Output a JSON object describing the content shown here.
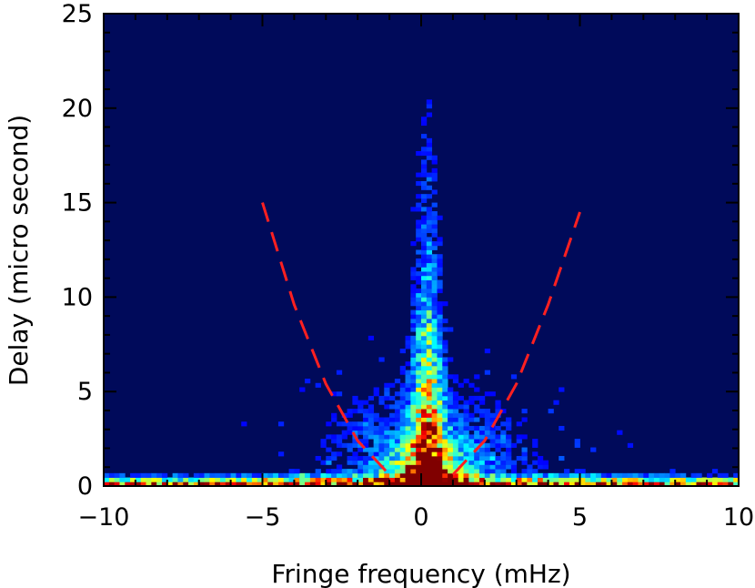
{
  "chart_data": {
    "type": "heatmap",
    "xlabel": "Fringe frequency (mHz)",
    "ylabel": "Delay (micro second)",
    "xlim": [
      -10,
      10
    ],
    "ylim": [
      0,
      25
    ],
    "x_ticks": [
      -10,
      -5,
      0,
      5,
      10
    ],
    "y_ticks": [
      0,
      5,
      10,
      15,
      20,
      25
    ],
    "x_tick_labels": [
      "−10",
      "−5",
      "0",
      "5",
      "10"
    ],
    "y_tick_labels": [
      "0",
      "5",
      "10",
      "15",
      "20",
      "25"
    ],
    "grid": false,
    "colormap": "jet",
    "background_color": "#000a5a",
    "overlay_curves": [
      {
        "style": "dashed",
        "color": "#ff2020",
        "x": [
          -5.0,
          -4.0,
          -3.0,
          -2.0,
          -1.0
        ],
        "y": [
          15.0,
          9.6,
          5.4,
          2.4,
          0.6
        ]
      },
      {
        "style": "dashed",
        "color": "#ff2020",
        "x": [
          1.0,
          2.0,
          3.0,
          4.0,
          5.0
        ],
        "y": [
          0.6,
          2.4,
          5.4,
          9.6,
          14.5
        ]
      }
    ]
  }
}
